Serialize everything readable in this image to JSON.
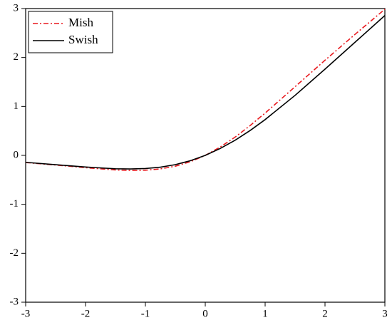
{
  "chart_data": {
    "type": "line",
    "x": [
      -3,
      -2.5,
      -2,
      -1.5,
      -1.25,
      -1,
      -0.75,
      -0.5,
      -0.25,
      0,
      0.25,
      0.5,
      0.75,
      1,
      1.5,
      2,
      2.5,
      3
    ],
    "series": [
      {
        "name": "Mish",
        "color": "#e8191e",
        "dash": "dashdot",
        "values": [
          -0.146,
          -0.197,
          -0.252,
          -0.298,
          -0.308,
          -0.303,
          -0.276,
          -0.221,
          -0.13,
          0,
          0.17,
          0.375,
          0.61,
          0.865,
          1.403,
          1.944,
          2.471,
          2.987
        ]
      },
      {
        "name": "Swish",
        "color": "#000000",
        "dash": "solid",
        "values": [
          -0.142,
          -0.19,
          -0.238,
          -0.274,
          -0.278,
          -0.269,
          -0.241,
          -0.189,
          -0.109,
          0,
          0.141,
          0.311,
          0.509,
          0.731,
          1.226,
          1.762,
          2.31,
          2.858
        ]
      }
    ],
    "xlim": [
      -3,
      3
    ],
    "ylim": [
      -3,
      3
    ],
    "xticks": [
      -3,
      -2,
      -1,
      0,
      1,
      2,
      3
    ],
    "yticks": [
      -3,
      -2,
      -1,
      0,
      1,
      2,
      3
    ],
    "grid": false,
    "legend": "upper left"
  }
}
